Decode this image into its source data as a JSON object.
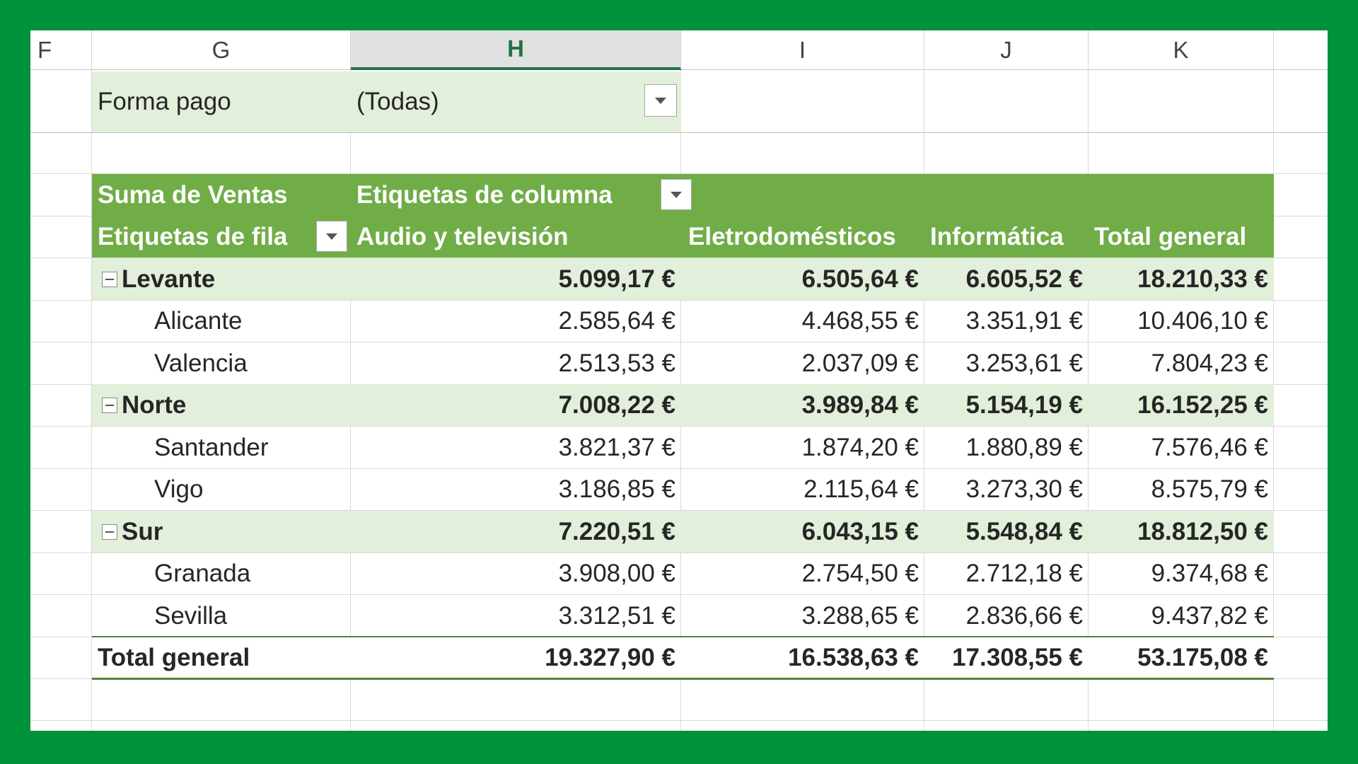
{
  "column_headers": [
    "F",
    "G",
    "H",
    "I",
    "J",
    "K"
  ],
  "selected_column": "H",
  "filter": {
    "label": "Forma pago",
    "value": "(Todas)",
    "dropdown_icon": "dropdown-arrow-icon"
  },
  "pivot": {
    "values_label": "Suma de Ventas",
    "column_labels_caption": "Etiquetas de columna",
    "row_labels_caption": "Etiquetas de fila",
    "columns": [
      "Audio y televisión",
      "Eletrodomésticos",
      "Informática",
      "Total general"
    ],
    "collapse_icon": "collapse-minus-icon",
    "groups": [
      {
        "name": "Levante",
        "values": [
          "5.099,17 €",
          "6.505,64 €",
          "6.605,52 €",
          "18.210,33 €"
        ],
        "children": [
          {
            "name": "Alicante",
            "values": [
              "2.585,64 €",
              "4.468,55 €",
              "3.351,91 €",
              "10.406,10 €"
            ]
          },
          {
            "name": "Valencia",
            "values": [
              "2.513,53 €",
              "2.037,09 €",
              "3.253,61 €",
              "7.804,23 €"
            ]
          }
        ]
      },
      {
        "name": "Norte",
        "values": [
          "7.008,22 €",
          "3.989,84 €",
          "5.154,19 €",
          "16.152,25 €"
        ],
        "children": [
          {
            "name": "Santander",
            "values": [
              "3.821,37 €",
              "1.874,20 €",
              "1.880,89 €",
              "7.576,46 €"
            ]
          },
          {
            "name": "Vigo",
            "values": [
              "3.186,85 €",
              "2.115,64 €",
              "3.273,30 €",
              "8.575,79 €"
            ]
          }
        ]
      },
      {
        "name": "Sur",
        "values": [
          "7.220,51 €",
          "6.043,15 €",
          "5.548,84 €",
          "18.812,50 €"
        ],
        "children": [
          {
            "name": "Granada",
            "values": [
              "3.908,00 €",
              "2.754,50 €",
              "2.712,18 €",
              "9.374,68 €"
            ]
          },
          {
            "name": "Sevilla",
            "values": [
              "3.312,51 €",
              "3.288,65 €",
              "2.836,66 €",
              "9.437,82 €"
            ]
          }
        ]
      }
    ],
    "grand_total": {
      "label": "Total general",
      "values": [
        "19.327,90 €",
        "16.538,63 €",
        "17.308,55 €",
        "53.175,08 €"
      ]
    }
  },
  "colors": {
    "frame": "#00913b",
    "pivot_header": "#70ad47",
    "group_band": "#e2efda",
    "total_border": "#548235"
  }
}
